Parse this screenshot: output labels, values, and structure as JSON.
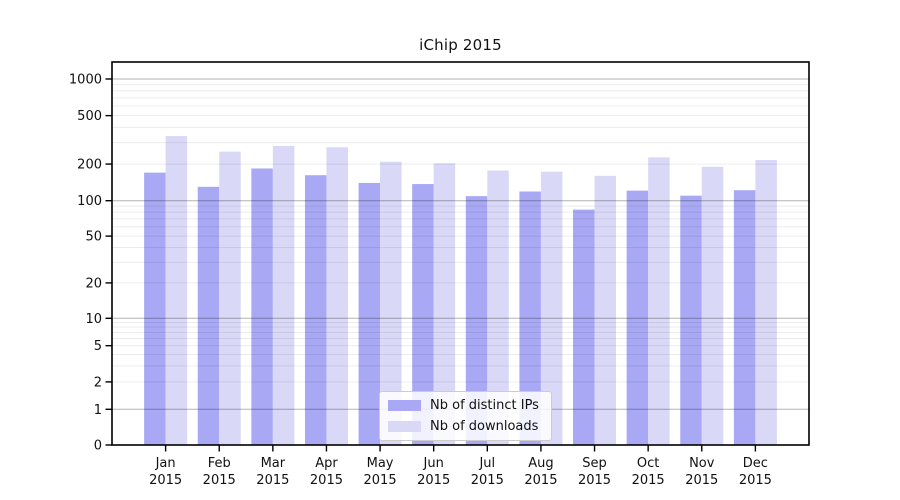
{
  "title": "iChip 2015",
  "chart_data": {
    "type": "bar",
    "title": "iChip 2015",
    "categories": [
      "Jan 2015",
      "Feb 2015",
      "Mar 2015",
      "Apr 2015",
      "May 2015",
      "Jun 2015",
      "Jul 2015",
      "Aug 2015",
      "Sep 2015",
      "Oct 2015",
      "Nov 2015",
      "Dec 2015"
    ],
    "series": [
      {
        "name": "Nb of distinct IPs",
        "color": "#a8a8f4",
        "values": [
          170,
          130,
          184,
          162,
          140,
          137,
          109,
          119,
          84,
          121,
          110,
          122
        ]
      },
      {
        "name": "Nb of downloads",
        "color": "#d9d9f7",
        "values": [
          340,
          253,
          282,
          275,
          209,
          203,
          177,
          173,
          160,
          227,
          190,
          216
        ]
      }
    ],
    "xlabel": "",
    "ylabel": "",
    "yscale": "symlog",
    "y_ticks": [
      1000,
      500,
      200,
      100,
      50,
      20,
      10,
      5,
      2,
      1,
      0
    ],
    "ylim": [
      0,
      1400
    ],
    "grid": "horizontal major and log-minor gridlines drawn over bars",
    "legend_position": "lower center"
  }
}
